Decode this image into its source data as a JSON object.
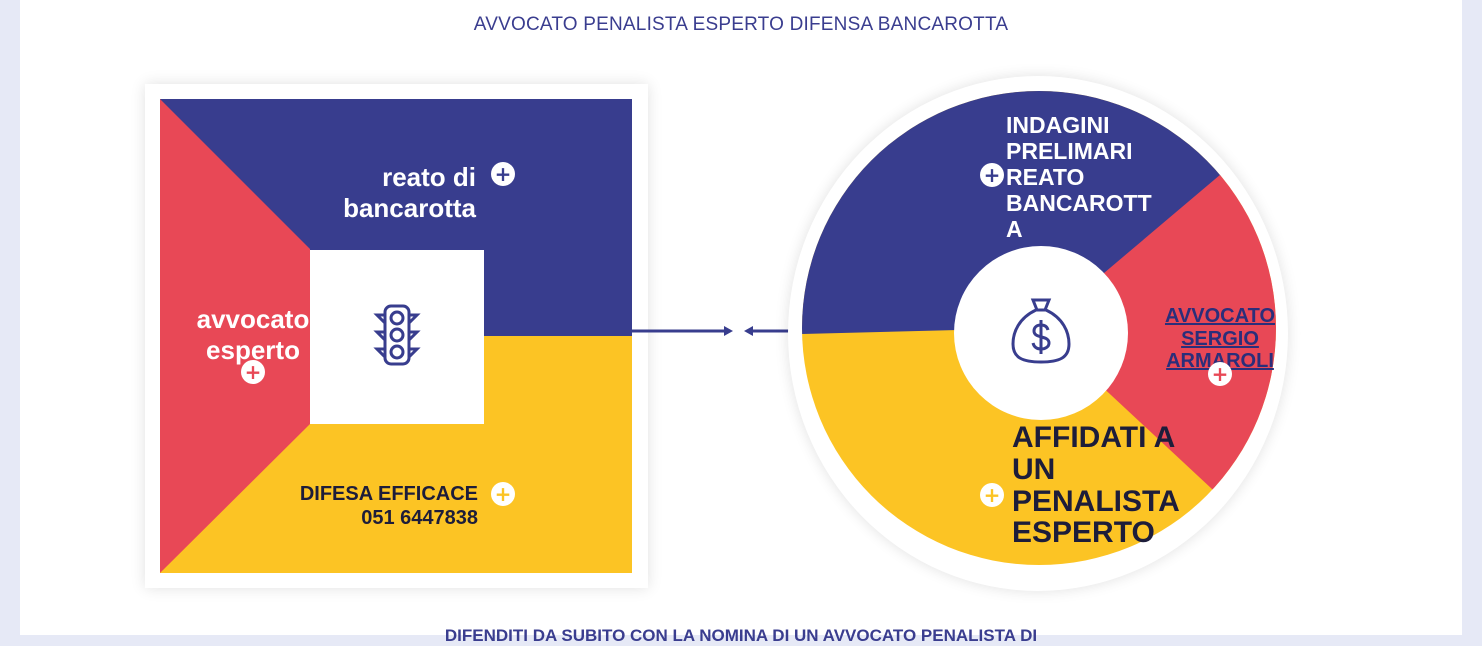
{
  "header": {
    "subtitle": "AVVOCATO PENALISTA ESPERTO DIFENSA BANCAROTTA"
  },
  "square_diagram": {
    "top_label_line1": "reato di",
    "top_label_line2": "bancarotta",
    "left_label_line1": "avvocato",
    "left_label_line2": "esperto",
    "bottom_label_line1": "DIFESA EFFICACE",
    "bottom_label_line2": "051 6447838",
    "center_icon": "traffic-light-icon",
    "colors": {
      "blue": "#383d8e",
      "red": "#e84856",
      "yellow": "#fcc424"
    }
  },
  "circle_diagram": {
    "top_label": [
      "INDAGINI",
      "PRELIMARI",
      "REATO",
      "BANCAROTT",
      "A"
    ],
    "right_label": [
      "AVVOCATO",
      "SERGIO",
      "ARMAROLI"
    ],
    "bottom_label": [
      "AFFIDATI A",
      "UN",
      "PENALISTA",
      "ESPERTO"
    ],
    "center_icon": "money-bag-icon"
  },
  "footer": {
    "text": "DIFENDITI DA SUBITO CON LA NOMINA DI UN AVVOCATO PENALISTA DI"
  }
}
